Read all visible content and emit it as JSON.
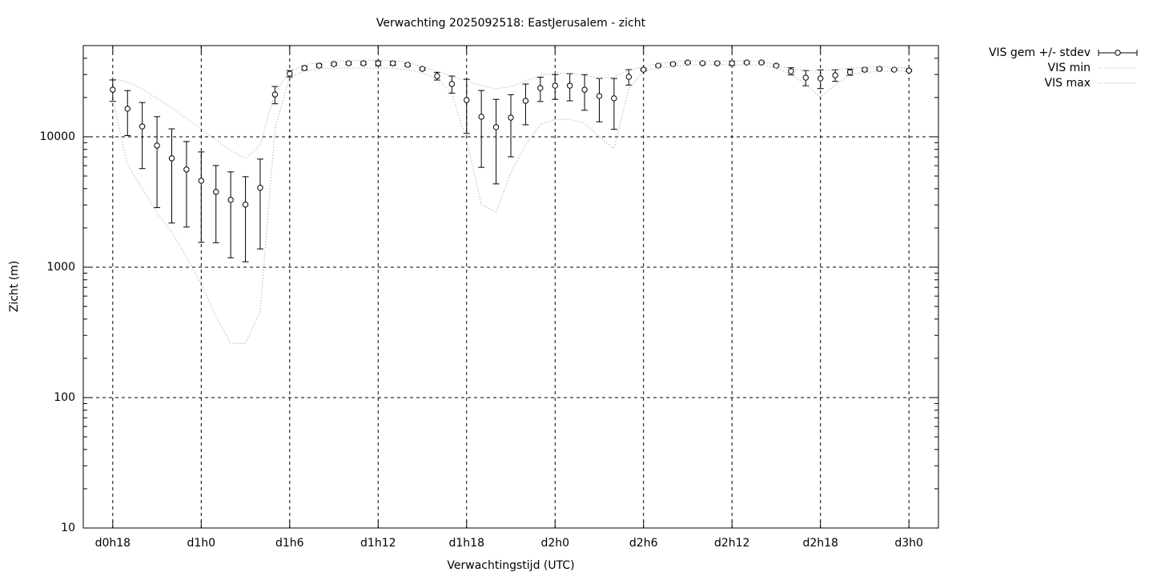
{
  "chart_data": {
    "type": "errorbar",
    "title": "Verwachting 2025092518: EastJerusalem - zicht",
    "xlabel": "Verwachtingstijd (UTC)",
    "ylabel": "Zicht (m)",
    "x": [
      18,
      19,
      20,
      21,
      22,
      23,
      24,
      25,
      26,
      27,
      28,
      29,
      30,
      31,
      32,
      33,
      34,
      35,
      36,
      37,
      38,
      39,
      40,
      41,
      42,
      43,
      44,
      45,
      46,
      47,
      48,
      49,
      50,
      51,
      52,
      53,
      54,
      55,
      56,
      57,
      58,
      59,
      60,
      61,
      62,
      63,
      64,
      65,
      66,
      67,
      68,
      69,
      70,
      71,
      72
    ],
    "xlim": [
      16,
      74
    ],
    "xticks": [
      {
        "value": 18,
        "label": "d0h18"
      },
      {
        "value": 24,
        "label": "d1h0"
      },
      {
        "value": 30,
        "label": "d1h6"
      },
      {
        "value": 36,
        "label": "d1h12"
      },
      {
        "value": 42,
        "label": "d1h18"
      },
      {
        "value": 48,
        "label": "d2h0"
      },
      {
        "value": 54,
        "label": "d2h6"
      },
      {
        "value": 60,
        "label": "d2h12"
      },
      {
        "value": 66,
        "label": "d2h18"
      },
      {
        "value": 72,
        "label": "d3h0"
      }
    ],
    "ylim": [
      10,
      50000
    ],
    "yticks": [
      10,
      100,
      1000,
      10000
    ],
    "log_y": true,
    "minor_ticks": true,
    "grid": true,
    "legend": "outside-top-right",
    "series": [
      {
        "name": "VIS gem +/- stdev",
        "color": "#000000",
        "values": [
          22960,
          16400,
          12000,
          8560,
          6840,
          5610,
          4600,
          3780,
          3280,
          3020,
          4060,
          21100,
          30470,
          33640,
          35100,
          36100,
          36600,
          36600,
          36600,
          36600,
          35600,
          33150,
          29200,
          25400,
          19100,
          14230,
          11850,
          14020,
          18860,
          23640,
          24660,
          24660,
          22960,
          20520,
          19700,
          28800,
          32700,
          35100,
          36100,
          37100,
          36600,
          36600,
          36600,
          37100,
          37100,
          35100,
          31800,
          28400,
          28000,
          29600,
          31300,
          32700,
          33150,
          32700,
          32200
        ],
        "errors": [
          4300,
          6200,
          6300,
          5700,
          4660,
          3580,
          3050,
          2240,
          2100,
          1920,
          2680,
          3200,
          1700,
          1200,
          1000,
          800,
          800,
          900,
          1500,
          1200,
          900,
          700,
          2000,
          3800,
          8500,
          8400,
          7500,
          7000,
          6500,
          5000,
          5300,
          5800,
          7000,
          7500,
          8300,
          3900,
          600,
          500,
          600,
          600,
          500,
          500,
          1400,
          800,
          500,
          600,
          2000,
          3800,
          4600,
          3000,
          1700,
          900,
          600,
          500,
          500
        ]
      },
      {
        "name": "VIS min",
        "color": "#999999",
        "values": [
          19000,
          6100,
          4000,
          2600,
          1850,
          1200,
          740,
          420,
          260,
          260,
          460,
          11500,
          28800,
          31800,
          33150,
          33600,
          33600,
          33600,
          33600,
          33600,
          32700,
          30900,
          27600,
          21700,
          9300,
          3020,
          2630,
          5300,
          8700,
          12350,
          13600,
          13600,
          12700,
          10000,
          8100,
          23300,
          31800,
          33600,
          34600,
          35600,
          35600,
          35600,
          35600,
          35600,
          35600,
          33600,
          30000,
          25000,
          20200,
          25000,
          30000,
          30900,
          31800,
          31800,
          31800
        ]
      },
      {
        "name": "VIS max",
        "color": "#999999",
        "values": [
          28000,
          26200,
          23300,
          19700,
          16600,
          13830,
          11500,
          9450,
          7870,
          6800,
          8700,
          21700,
          31800,
          35600,
          37100,
          38200,
          38200,
          38700,
          38700,
          38200,
          37100,
          34600,
          31800,
          29200,
          26800,
          24660,
          23300,
          24300,
          26800,
          29600,
          30900,
          30450,
          29600,
          28000,
          28800,
          32200,
          34600,
          36600,
          37630,
          38200,
          38200,
          38200,
          38200,
          38200,
          37630,
          35600,
          33150,
          32200,
          32200,
          32700,
          33600,
          34100,
          34600,
          34100,
          33600
        ]
      }
    ]
  }
}
